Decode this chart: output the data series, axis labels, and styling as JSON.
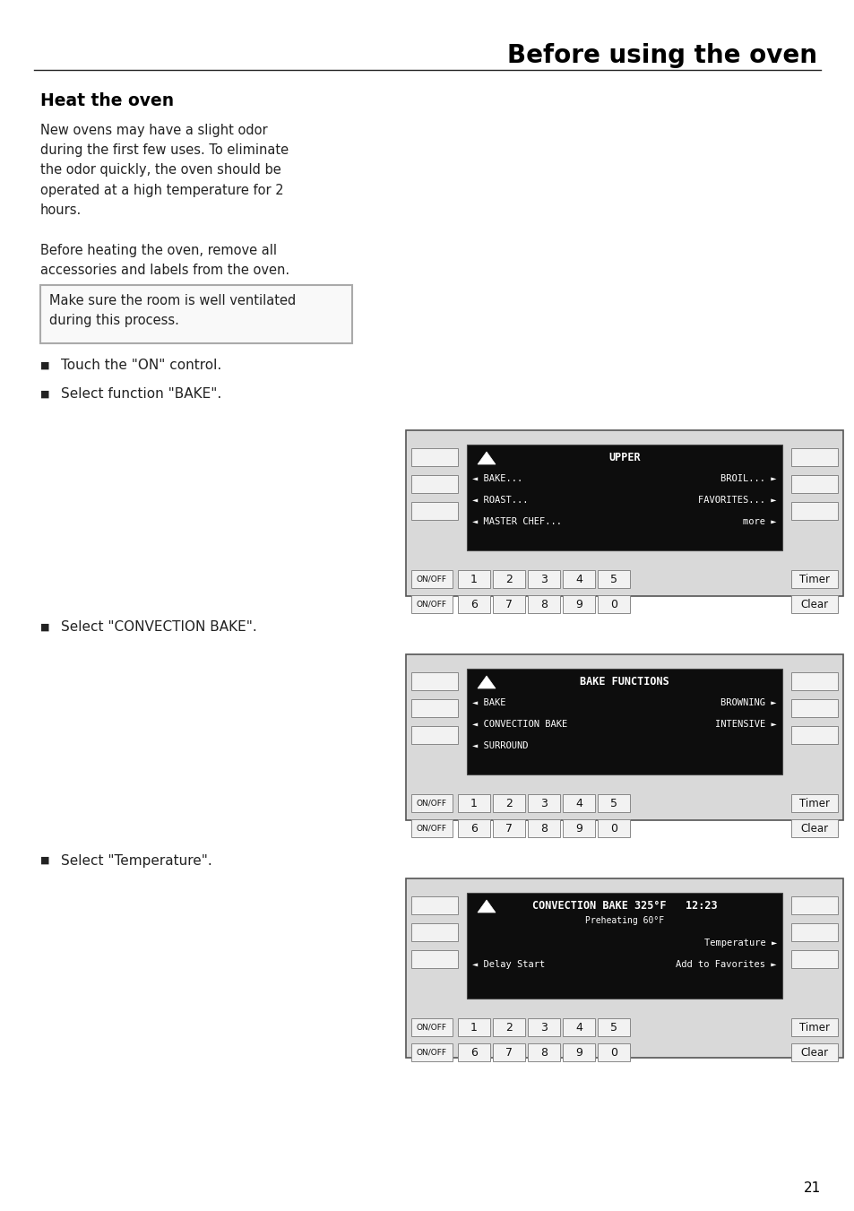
{
  "page_title": "Before using the oven",
  "section_title": "Heat the oven",
  "para1": "New ovens may have a slight odor\nduring the first few uses. To eliminate\nthe odor quickly, the oven should be\noperated at a high temperature for 2\nhours.",
  "para2": "Before heating the oven, remove all\naccessories and labels from the oven.",
  "warning_text": "Make sure the room is well ventilated\nduring this process.",
  "bullet1": "Touch the \"ON\" control.",
  "bullet2": "Select function \"BAKE\".",
  "bullet3": "Select \"CONVECTION BAKE\".",
  "bullet4": "Select \"Temperature\".",
  "page_number": "21",
  "bg_color": "#ffffff",
  "text_color": "#000000",
  "display_bg": "#0d0d0d",
  "display_text": "#ffffff",
  "panel_bg": "#d9d9d9",
  "button_bg": "#f2f2f2",
  "warning_border": "#aaaaaa",
  "warning_bg": "#f9f9f9",
  "screen1": {
    "title": "UPPER",
    "rows": [
      {
        "left": "◄ BAKE...",
        "right": "BROIL... ►"
      },
      {
        "left": "◄ ROAST...",
        "right": "FAVORITES... ►"
      },
      {
        "left": "◄ MASTER CHEF...",
        "right": "more ►"
      }
    ]
  },
  "screen2": {
    "title": "BAKE FUNCTIONS",
    "rows": [
      {
        "left": "◄ BAKE",
        "right": "BROWNING ►"
      },
      {
        "left": "◄ CONVECTION BAKE",
        "right": "INTENSIVE ►"
      },
      {
        "left": "◄ SURROUND",
        "right": ""
      }
    ]
  },
  "screen3": {
    "title": "CONVECTION BAKE 325°F   12:23",
    "subtitle": "Preheating 60°F",
    "rows": [
      {
        "left": "",
        "right": "Temperature ►"
      },
      {
        "left": "◄ Delay Start",
        "right": "Add to Favorites ►"
      }
    ]
  }
}
